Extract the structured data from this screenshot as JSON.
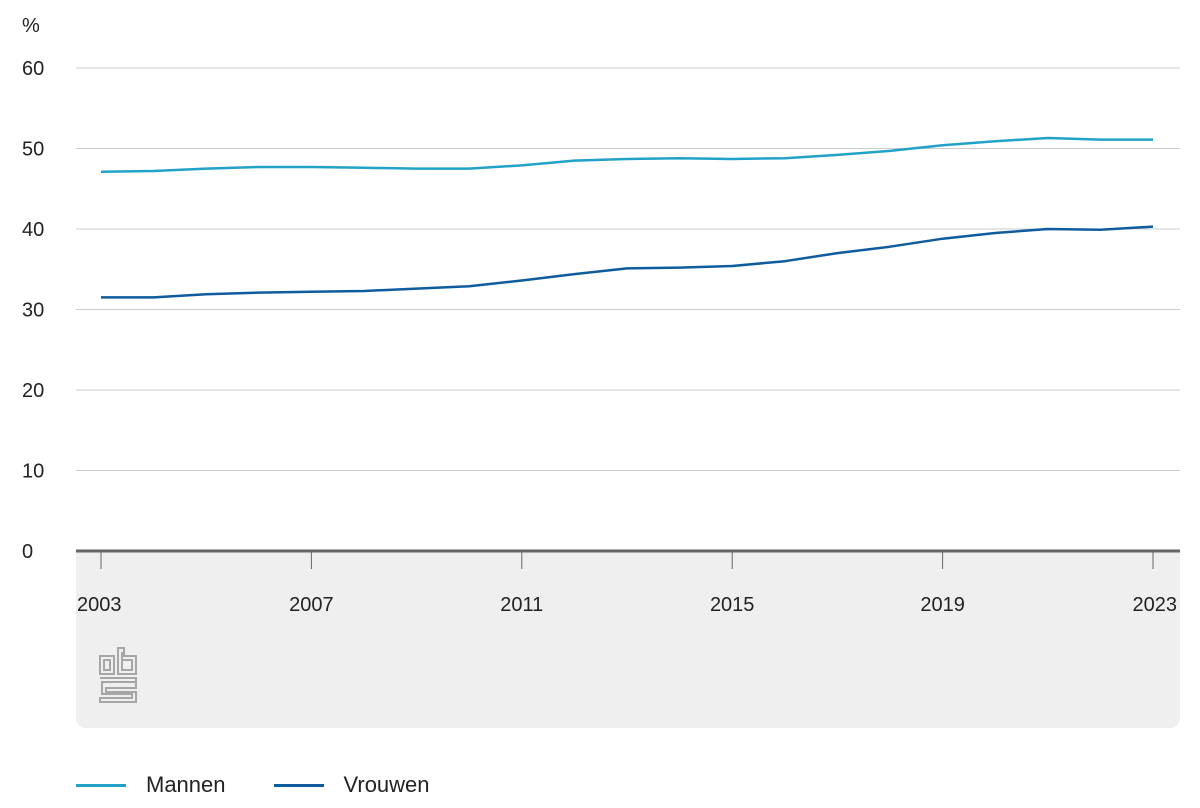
{
  "chart_data": {
    "type": "line",
    "ylabel": "%",
    "ylim": [
      0,
      60
    ],
    "yticks": [
      0,
      10,
      20,
      30,
      40,
      50,
      60
    ],
    "xlim": [
      2003,
      2023
    ],
    "xticks": [
      2003,
      2007,
      2011,
      2015,
      2019,
      2023
    ],
    "grid": true,
    "legend_position": "bottom-left",
    "x": [
      2003,
      2004,
      2005,
      2006,
      2007,
      2008,
      2009,
      2010,
      2011,
      2012,
      2013,
      2014,
      2015,
      2016,
      2017,
      2018,
      2019,
      2020,
      2021,
      2022,
      2023
    ],
    "series": [
      {
        "name": "Mannen",
        "color": "#22a2c8",
        "values": [
          47.1,
          47.2,
          47.5,
          47.7,
          47.7,
          47.6,
          47.5,
          47.5,
          47.9,
          48.5,
          48.7,
          48.8,
          48.7,
          48.8,
          49.2,
          49.7,
          50.4,
          50.9,
          51.3,
          51.1,
          51.1
        ]
      },
      {
        "name": "Vrouwen",
        "color": "#0e5c9e",
        "values": [
          31.5,
          31.5,
          31.9,
          32.1,
          32.2,
          32.3,
          32.6,
          32.9,
          33.6,
          34.4,
          35.1,
          35.2,
          35.4,
          36.0,
          37.0,
          37.8,
          38.8,
          39.5,
          40.0,
          39.9,
          40.3
        ]
      }
    ]
  },
  "colors": {
    "axis": "#666666",
    "grid": "#cccccc",
    "footer_panel": "#efefef",
    "logo": "#a6a6a6"
  },
  "logo": {
    "name": "cbs-logo"
  }
}
